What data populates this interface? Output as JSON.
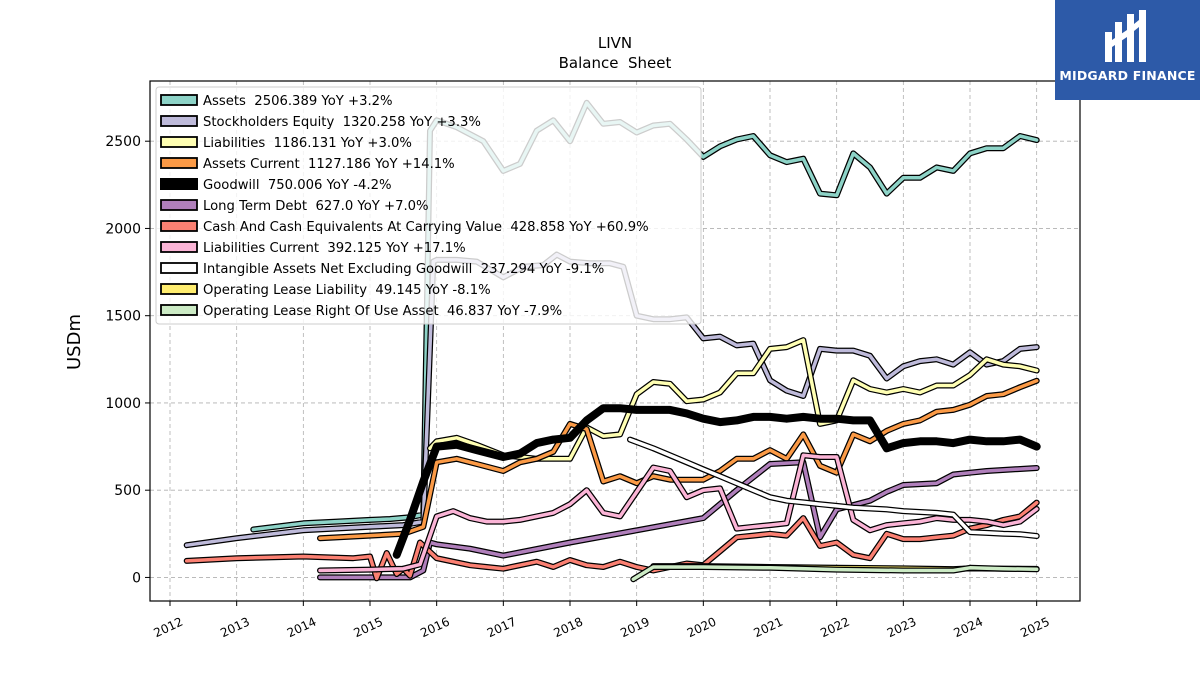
{
  "brand": {
    "name": "MIDGARD FINANCE"
  },
  "chart_data": {
    "type": "line",
    "title": "LIVN",
    "subtitle": "Balance  Sheet",
    "ylabel": "USDm",
    "xlabel": "",
    "xlim": [
      2011.7,
      2025.65
    ],
    "ylim": [
      -135,
      2845
    ],
    "yticks": [
      0,
      500,
      1000,
      1500,
      2000,
      2500
    ],
    "xticks": [
      "2012",
      "2013",
      "2014",
      "2015",
      "2016",
      "2017",
      "2018",
      "2019",
      "2020",
      "2021",
      "2022",
      "2023",
      "2024",
      "2025"
    ],
    "grid": true,
    "legend_position": "top-left",
    "series": [
      {
        "name": "Assets",
        "legend": "Assets  2506.389 YoY +3.2%",
        "color": "#8dd3c7",
        "x": [
          2013.25,
          2014.0,
          2014.5,
          2015.0,
          2015.3,
          2015.6,
          2015.8,
          2015.9,
          2016.0,
          2016.3,
          2016.7,
          2017.0,
          2017.25,
          2017.5,
          2017.75,
          2018.0,
          2018.25,
          2018.5,
          2018.75,
          2019.0,
          2019.25,
          2019.5,
          2019.75,
          2020.0,
          2020.25,
          2020.5,
          2020.75,
          2021.0,
          2021.25,
          2021.5,
          2021.75,
          2022.0,
          2022.25,
          2022.5,
          2022.75,
          2023.0,
          2023.25,
          2023.5,
          2023.75,
          2024.0,
          2024.25,
          2024.5,
          2024.75,
          2025.0
        ],
        "y": [
          275,
          310,
          320,
          330,
          335,
          345,
          360,
          2560,
          2620,
          2580,
          2500,
          2330,
          2370,
          2560,
          2620,
          2500,
          2720,
          2600,
          2610,
          2550,
          2590,
          2600,
          2510,
          2410,
          2470,
          2510,
          2530,
          2420,
          2380,
          2400,
          2200,
          2190,
          2430,
          2350,
          2200,
          2290,
          2290,
          2350,
          2330,
          2430,
          2460,
          2460,
          2530,
          2506.389
        ]
      },
      {
        "name": "Stockholders Equity",
        "legend": "Stockholders Equity  1320.258 YoY +3.3%",
        "color": "#bebada",
        "x": [
          2012.25,
          2013.0,
          2014.0,
          2015.0,
          2015.5,
          2015.8,
          2015.95,
          2016.0,
          2016.3,
          2016.6,
          2017.0,
          2017.3,
          2017.6,
          2017.8,
          2018.0,
          2018.3,
          2018.6,
          2018.8,
          2019.0,
          2019.25,
          2019.5,
          2019.75,
          2020.0,
          2020.25,
          2020.5,
          2020.75,
          2021.0,
          2021.25,
          2021.5,
          2021.75,
          2022.0,
          2022.25,
          2022.5,
          2022.75,
          2023.0,
          2023.25,
          2023.5,
          2023.75,
          2024.0,
          2024.25,
          2024.5,
          2024.75,
          2025.0
        ],
        "y": [
          185,
          225,
          270,
          290,
          300,
          320,
          1810,
          1820,
          1820,
          1810,
          1720,
          1780,
          1790,
          1850,
          1810,
          1800,
          1800,
          1780,
          1500,
          1480,
          1480,
          1490,
          1370,
          1380,
          1330,
          1340,
          1130,
          1070,
          1040,
          1310,
          1300,
          1300,
          1270,
          1140,
          1210,
          1240,
          1250,
          1220,
          1290,
          1220,
          1240,
          1310,
          1320.258
        ]
      },
      {
        "name": "Liabilities",
        "legend": "Liabilities  1186.131 YoY +3.0%",
        "color": "#ffffb3",
        "x": [
          2015.9,
          2016.0,
          2016.3,
          2016.6,
          2017.0,
          2017.25,
          2017.5,
          2017.75,
          2018.0,
          2018.25,
          2018.5,
          2018.75,
          2019.0,
          2019.25,
          2019.5,
          2019.75,
          2020.0,
          2020.25,
          2020.5,
          2020.75,
          2021.0,
          2021.25,
          2021.5,
          2021.75,
          2022.0,
          2022.25,
          2022.5,
          2022.75,
          2023.0,
          2023.25,
          2023.5,
          2023.75,
          2024.0,
          2024.25,
          2024.5,
          2024.75,
          2025.0
        ],
        "y": [
          740,
          780,
          800,
          760,
          700,
          690,
          680,
          680,
          680,
          860,
          810,
          820,
          1050,
          1120,
          1110,
          1010,
          1020,
          1060,
          1170,
          1170,
          1310,
          1320,
          1360,
          880,
          900,
          1130,
          1080,
          1060,
          1080,
          1060,
          1100,
          1100,
          1160,
          1250,
          1220,
          1210,
          1186.131
        ]
      },
      {
        "name": "Assets Current",
        "legend": "Assets Current  1127.186 YoY +14.1%",
        "color": "#fb9a46",
        "x": [
          2014.25,
          2015.0,
          2015.5,
          2015.8,
          2016.0,
          2016.3,
          2016.6,
          2017.0,
          2017.25,
          2017.5,
          2017.75,
          2018.0,
          2018.25,
          2018.5,
          2018.75,
          2019.0,
          2019.25,
          2019.5,
          2019.75,
          2020.0,
          2020.25,
          2020.5,
          2020.75,
          2021.0,
          2021.25,
          2021.5,
          2021.75,
          2022.0,
          2022.25,
          2022.5,
          2022.75,
          2023.0,
          2023.25,
          2023.5,
          2023.75,
          2024.0,
          2024.25,
          2024.5,
          2024.75,
          2025.0
        ],
        "y": [
          225,
          240,
          250,
          290,
          660,
          680,
          650,
          610,
          660,
          680,
          720,
          880,
          850,
          550,
          580,
          540,
          580,
          560,
          560,
          560,
          610,
          680,
          680,
          730,
          680,
          820,
          640,
          600,
          820,
          780,
          840,
          880,
          900,
          950,
          960,
          990,
          1040,
          1050,
          1090,
          1127.186
        ]
      },
      {
        "name": "Goodwill",
        "legend": "Goodwill  750.006 YoY -4.2%",
        "color": "#000000",
        "x": [
          2015.4,
          2015.6,
          2015.8,
          2016.0,
          2016.3,
          2016.6,
          2017.0,
          2017.25,
          2017.5,
          2017.75,
          2018.0,
          2018.25,
          2018.5,
          2018.75,
          2019.0,
          2019.25,
          2019.5,
          2019.75,
          2020.0,
          2020.25,
          2020.5,
          2020.75,
          2021.0,
          2021.25,
          2021.5,
          2021.75,
          2022.0,
          2022.25,
          2022.5,
          2022.75,
          2023.0,
          2023.25,
          2023.5,
          2023.75,
          2024.0,
          2024.25,
          2024.5,
          2024.75,
          2025.0
        ],
        "y": [
          130,
          330,
          550,
          750,
          760,
          730,
          690,
          710,
          770,
          790,
          800,
          900,
          970,
          970,
          960,
          960,
          960,
          940,
          910,
          890,
          900,
          920,
          920,
          910,
          920,
          910,
          910,
          900,
          900,
          740,
          770,
          780,
          780,
          770,
          790,
          780,
          780,
          790,
          750.006
        ]
      },
      {
        "name": "Long Term Debt",
        "legend": "Long Term Debt  627.0 YoY +7.0%",
        "color": "#b07fbb",
        "x": [
          2014.25,
          2015.0,
          2015.6,
          2015.8,
          2015.9,
          2016.0,
          2016.5,
          2017.0,
          2018.0,
          2019.0,
          2020.0,
          2020.5,
          2021.0,
          2021.5,
          2021.75,
          2022.0,
          2022.5,
          2022.75,
          2023.0,
          2023.5,
          2023.75,
          2024.0,
          2024.25,
          2025.0
        ],
        "y": [
          0,
          0,
          0,
          40,
          200,
          190,
          165,
          125,
          200,
          270,
          340,
          500,
          650,
          660,
          230,
          390,
          440,
          490,
          530,
          540,
          590,
          600,
          610,
          627.0
        ]
      },
      {
        "name": "Cash And Cash Equivalents At Carrying Value",
        "legend": "Cash And Cash Equivalents At Carrying Value  428.858 YoY +60.9%",
        "color": "#fb8072",
        "x": [
          2012.25,
          2013.0,
          2014.0,
          2014.75,
          2015.0,
          2015.1,
          2015.25,
          2015.4,
          2015.5,
          2015.6,
          2015.75,
          2016.0,
          2016.25,
          2016.5,
          2016.75,
          2017.0,
          2017.25,
          2017.5,
          2017.75,
          2018.0,
          2018.25,
          2018.5,
          2018.75,
          2019.0,
          2019.25,
          2019.5,
          2019.75,
          2020.0,
          2020.25,
          2020.5,
          2020.75,
          2021.0,
          2021.25,
          2021.5,
          2021.75,
          2022.0,
          2022.25,
          2022.5,
          2022.75,
          2023.0,
          2023.25,
          2023.5,
          2023.75,
          2024.0,
          2024.25,
          2024.5,
          2024.75,
          2025.0
        ],
        "y": [
          95,
          110,
          120,
          110,
          120,
          -5,
          140,
          20,
          50,
          10,
          200,
          110,
          90,
          70,
          60,
          50,
          70,
          90,
          60,
          100,
          70,
          60,
          90,
          60,
          40,
          60,
          80,
          70,
          150,
          230,
          240,
          250,
          240,
          340,
          180,
          200,
          130,
          110,
          250,
          220,
          220,
          230,
          240,
          280,
          300,
          330,
          350,
          428.858
        ]
      },
      {
        "name": "Liabilities Current",
        "legend": "Liabilities Current  392.125 YoY +17.1%",
        "color": "#fbb4d6",
        "x": [
          2014.25,
          2015.0,
          2015.5,
          2015.75,
          2016.0,
          2016.25,
          2016.5,
          2016.75,
          2017.0,
          2017.25,
          2017.5,
          2017.75,
          2018.0,
          2018.25,
          2018.5,
          2018.75,
          2019.0,
          2019.25,
          2019.5,
          2019.75,
          2020.0,
          2020.25,
          2020.5,
          2020.75,
          2021.0,
          2021.25,
          2021.5,
          2021.75,
          2022.0,
          2022.25,
          2022.5,
          2022.75,
          2023.0,
          2023.25,
          2023.5,
          2023.75,
          2024.0,
          2024.25,
          2024.5,
          2024.75,
          2025.0
        ],
        "y": [
          40,
          45,
          50,
          75,
          350,
          380,
          340,
          320,
          320,
          330,
          350,
          370,
          420,
          500,
          370,
          350,
          490,
          630,
          610,
          460,
          500,
          510,
          280,
          290,
          300,
          310,
          700,
          690,
          690,
          330,
          270,
          300,
          310,
          320,
          340,
          330,
          330,
          320,
          300,
          320,
          392.125
        ]
      },
      {
        "name": "Intangible Assets Net Excluding Goodwill",
        "legend": "Intangible Assets Net Excluding Goodwill  237.294 YoY -9.1%",
        "color": "#ffffff",
        "x": [
          2018.9,
          2019.25,
          2019.5,
          2019.75,
          2020.0,
          2020.25,
          2020.5,
          2020.75,
          2021.0,
          2021.25,
          2021.5,
          2021.75,
          2022.0,
          2022.25,
          2022.5,
          2022.75,
          2023.0,
          2023.25,
          2023.5,
          2023.75,
          2024.0,
          2024.25,
          2024.5,
          2024.75,
          2025.0
        ],
        "y": [
          790,
          740,
          700,
          660,
          620,
          580,
          540,
          500,
          460,
          440,
          430,
          420,
          410,
          400,
          395,
          390,
          380,
          375,
          370,
          360,
          260,
          255,
          250,
          248,
          237.294
        ]
      },
      {
        "name": "Operating Lease Liability",
        "legend": "Operating Lease Liability  49.145 YoY -8.1%",
        "color": "#ffed6f",
        "x": [
          2019.25,
          2020.0,
          2021.0,
          2022.0,
          2023.0,
          2023.75,
          2024.0,
          2024.5,
          2025.0
        ],
        "y": [
          65,
          65,
          60,
          55,
          52,
          48,
          52,
          50,
          49.145
        ]
      },
      {
        "name": "Operating Lease Right Of Use Asset",
        "legend": "Operating Lease Right Of Use Asset  46.837 YoY -7.9%",
        "color": "#ccebc5",
        "x": [
          2018.95,
          2019.25,
          2020.0,
          2021.0,
          2022.0,
          2023.0,
          2023.75,
          2024.0,
          2024.5,
          2025.0
        ],
        "y": [
          -10,
          60,
          60,
          55,
          45,
          40,
          40,
          55,
          50,
          46.837
        ]
      }
    ]
  }
}
